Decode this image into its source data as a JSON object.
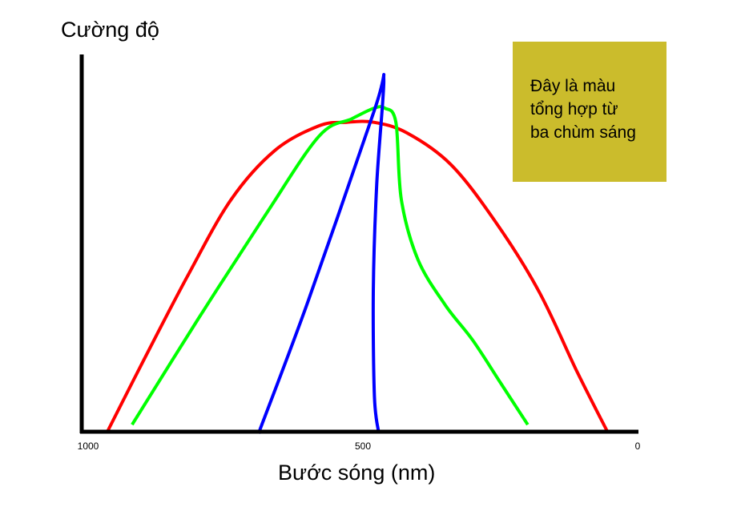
{
  "chart_data": {
    "type": "line",
    "title": "",
    "xlabel": "Bước sóng (nm)",
    "ylabel": "Cường độ",
    "xlim": [
      1000,
      0
    ],
    "ylim": [
      0,
      100
    ],
    "x_axis_reversed": true,
    "x_ticks": [
      {
        "value": 1000,
        "label": "1000"
      },
      {
        "value": 500,
        "label": "500"
      },
      {
        "value": 0,
        "label": "0"
      }
    ],
    "grid": false,
    "legend": null,
    "series": [
      {
        "color": "#ff0000",
        "points": [
          [
            965,
            0
          ],
          [
            900,
            20
          ],
          [
            820,
            44
          ],
          [
            740,
            66
          ],
          [
            660,
            80
          ],
          [
            580,
            87
          ],
          [
            530,
            88
          ],
          [
            480,
            88
          ],
          [
            420,
            85
          ],
          [
            340,
            76
          ],
          [
            260,
            60
          ],
          [
            180,
            40
          ],
          [
            110,
            17
          ],
          [
            55,
            0
          ]
        ]
      },
      {
        "color": "#00ff00",
        "points": [
          [
            920,
            2
          ],
          [
            800,
            32
          ],
          [
            680,
            61
          ],
          [
            580,
            84
          ],
          [
            520,
            89
          ],
          [
            480,
            92
          ],
          [
            460,
            92
          ],
          [
            440,
            88
          ],
          [
            430,
            66
          ],
          [
            400,
            49
          ],
          [
            350,
            36
          ],
          [
            300,
            26
          ],
          [
            250,
            14
          ],
          [
            200,
            2
          ]
        ]
      },
      {
        "color": "#0000ff",
        "points": [
          [
            690,
            -0.5
          ],
          [
            600,
            37
          ],
          [
            480,
            91
          ],
          [
            462,
            100
          ],
          [
            475,
            70
          ],
          [
            481,
            40
          ],
          [
            479,
            10
          ],
          [
            471,
            -0.5
          ]
        ]
      }
    ],
    "annotation": {
      "lines": [
        "Đây là màu",
        "tổng hợp từ",
        "ba chùm sáng"
      ],
      "background": "#cbbc2c"
    },
    "axis_color": "#000000"
  }
}
